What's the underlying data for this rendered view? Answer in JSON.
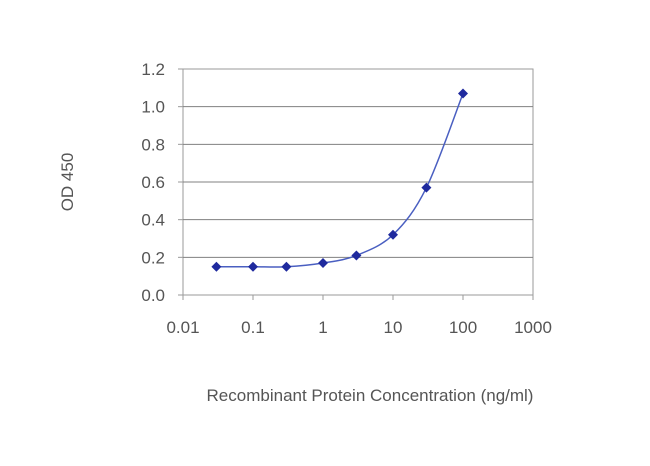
{
  "chart_data": {
    "type": "scatter",
    "title": "",
    "xlabel": "Recombinant Protein Concentration (ng/ml)",
    "ylabel": "OD 450",
    "x_scale": "log",
    "xlim": [
      0.01,
      1000
    ],
    "ylim": [
      0,
      1.2
    ],
    "x_ticks": [
      "0.01",
      "0.1",
      "1",
      "10",
      "100",
      "1000"
    ],
    "y_ticks": [
      "0.0",
      "0.2",
      "0.4",
      "0.6",
      "0.8",
      "1.0",
      "1.2"
    ],
    "grid": "horizontal",
    "legend": "none",
    "series": [
      {
        "x": [
          0.03,
          0.1,
          0.3,
          1,
          3,
          10,
          30,
          100
        ],
        "y": [
          0.15,
          0.15,
          0.15,
          0.17,
          0.21,
          0.32,
          0.57,
          1.07
        ],
        "marker": "diamond",
        "fit_curve": true
      }
    ],
    "colors": {
      "series": "#1f2a9e",
      "curve": "#4a5fc1",
      "grid": "#808080",
      "text": "#555555"
    }
  }
}
